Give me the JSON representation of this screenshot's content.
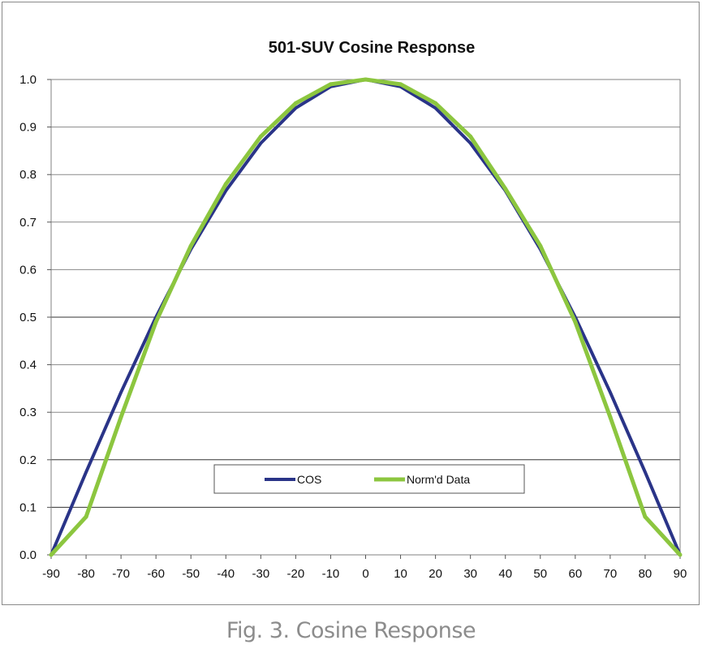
{
  "chart_data": {
    "type": "line",
    "title": "501-SUV Cosine Response",
    "xlabel": "",
    "ylabel": "",
    "x": [
      -90,
      -80,
      -70,
      -60,
      -50,
      -40,
      -30,
      -20,
      -10,
      0,
      10,
      20,
      30,
      40,
      50,
      60,
      70,
      80,
      90
    ],
    "x_tick_labels": [
      "-90",
      "-80",
      "-70",
      "-60",
      "-50",
      "-40",
      "-30",
      "-20",
      "-10",
      "0",
      "10",
      "20",
      "30",
      "40",
      "50",
      "60",
      "70",
      "80",
      "90"
    ],
    "y_tick_labels": [
      "0.0",
      "0.1",
      "0.2",
      "0.3",
      "0.4",
      "0.5",
      "0.6",
      "0.7",
      "0.8",
      "0.9",
      "1.0"
    ],
    "xlim": [
      -90,
      90
    ],
    "ylim": [
      0,
      1
    ],
    "grid": true,
    "legend_position": "lower-center",
    "series": [
      {
        "name": "COS",
        "color": "#2a3488",
        "values": [
          0.0,
          0.174,
          0.342,
          0.5,
          0.643,
          0.766,
          0.866,
          0.94,
          0.985,
          1.0,
          0.985,
          0.94,
          0.866,
          0.766,
          0.643,
          0.5,
          0.342,
          0.174,
          0.0
        ]
      },
      {
        "name": "Norm'd Data",
        "color": "#8cc63f",
        "values": [
          0.0,
          0.08,
          0.29,
          0.49,
          0.65,
          0.78,
          0.88,
          0.95,
          0.99,
          1.0,
          0.99,
          0.95,
          0.88,
          0.77,
          0.65,
          0.49,
          0.29,
          0.08,
          0.0
        ]
      }
    ]
  },
  "caption": "Fig. 3. Cosine Response"
}
